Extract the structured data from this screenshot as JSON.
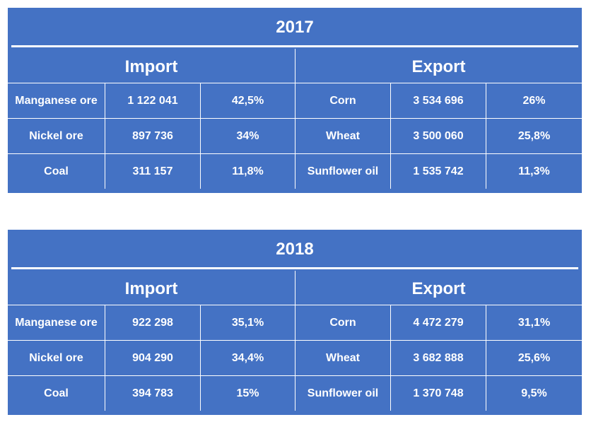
{
  "tables": [
    {
      "year": "2017",
      "import_label": "Import",
      "export_label": "Export",
      "rows": [
        {
          "import_item": "Manganese ore",
          "import_value": "1 122 041",
          "import_share": "42,5%",
          "export_item": "Corn",
          "export_value": "3 534 696",
          "export_share": "26%"
        },
        {
          "import_item": "Nickel ore",
          "import_value": "897 736",
          "import_share": "34%",
          "export_item": "Wheat",
          "export_value": "3 500 060",
          "export_share": "25,8%"
        },
        {
          "import_item": "Coal",
          "import_value": "311 157",
          "import_share": "11,8%",
          "export_item": "Sunflower oil",
          "export_value": "1 535 742",
          "export_share": "11,3%"
        }
      ]
    },
    {
      "year": "2018",
      "import_label": "Import",
      "export_label": "Export",
      "rows": [
        {
          "import_item": "Manganese ore",
          "import_value": "922 298",
          "import_share": "35,1%",
          "export_item": "Corn",
          "export_value": "4 472 279",
          "export_share": "31,1%"
        },
        {
          "import_item": "Nickel ore",
          "import_value": "904 290",
          "import_share": "34,4%",
          "export_item": "Wheat",
          "export_value": "3 682 888",
          "export_share": "25,6%"
        },
        {
          "import_item": "Coal",
          "import_value": "394 783",
          "import_share": "15%",
          "export_item": "Sunflower oil",
          "export_value": "1 370 748",
          "export_share": "9,5%"
        }
      ]
    }
  ]
}
